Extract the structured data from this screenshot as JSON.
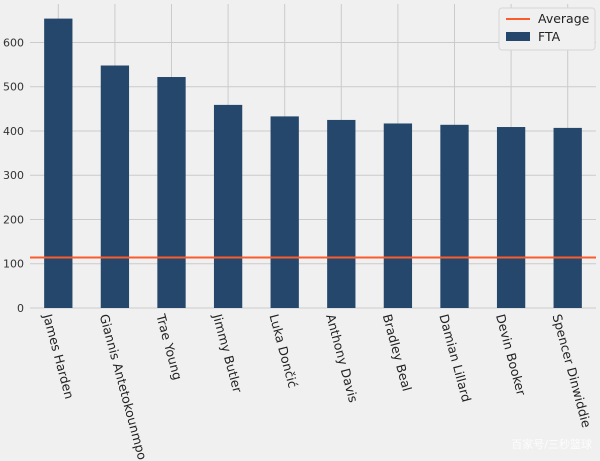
{
  "chart_data": {
    "type": "bar",
    "categories": [
      "James Harden",
      "Giannis Antetokounmpo",
      "Trae Young",
      "Jimmy Butler",
      "Luka Dončić",
      "Anthony Davis",
      "Bradley Beal",
      "Damian Lillard",
      "Devin Booker",
      "Spencer Dinwiddie"
    ],
    "series": [
      {
        "name": "FTA",
        "values": [
          654,
          548,
          522,
          459,
          433,
          425,
          417,
          414,
          409,
          407
        ],
        "color": "#24476b"
      }
    ],
    "reference_lines": [
      {
        "name": "Average",
        "value": 114,
        "color": "#fc5c2c"
      }
    ],
    "title": "",
    "xlabel": "",
    "ylabel": "",
    "yticks": [
      0,
      100,
      200,
      300,
      400,
      500,
      600
    ],
    "ylim": [
      0,
      687
    ],
    "grid": true,
    "legend_position": "top-right",
    "background": "#f0f0f0",
    "grid_color": "#cbcbcb"
  },
  "watermark": "百家号/三秒篮球"
}
